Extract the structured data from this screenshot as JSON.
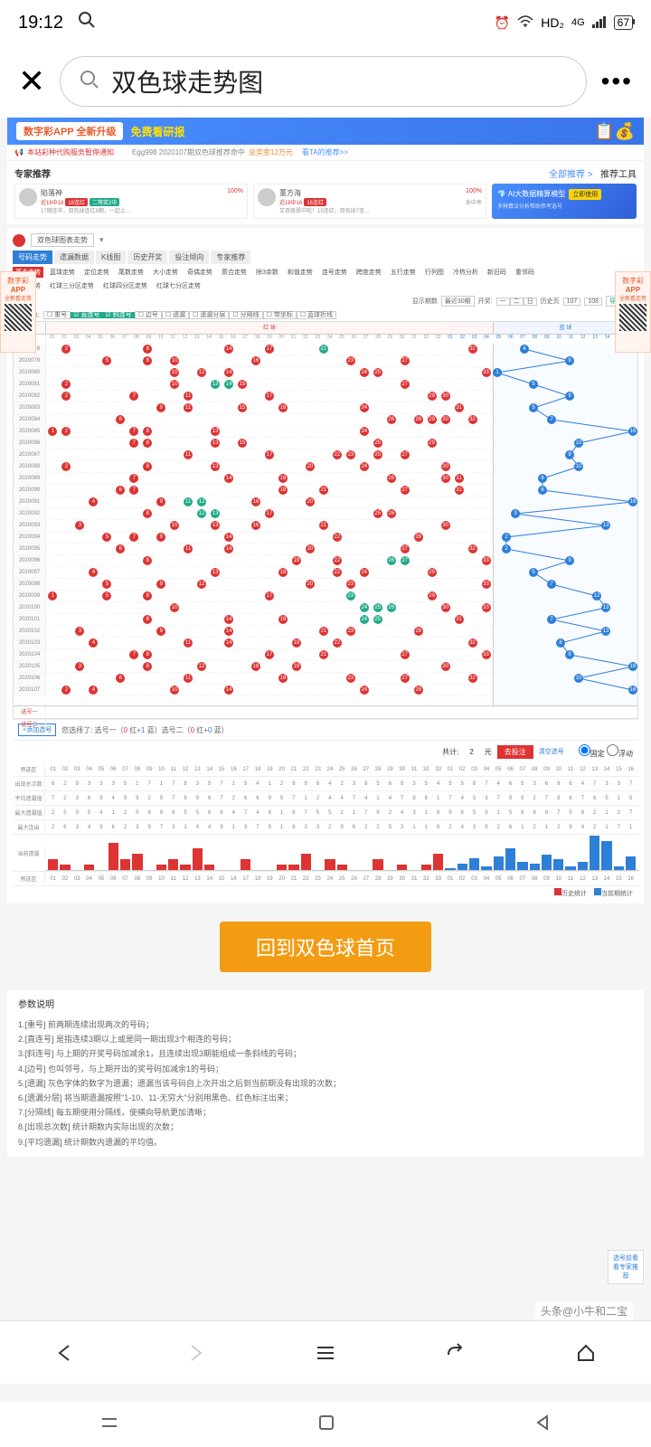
{
  "status": {
    "time": "19:12",
    "net": "HD₂",
    "sig": "4G",
    "battery": "67"
  },
  "search": {
    "query": "双色球走势图"
  },
  "banner": {
    "pill": "数字彩APP 全新升级",
    "text": "免费看研报"
  },
  "notice": {
    "l": "本站彩种代购服务暂停通知",
    "m": "Egg998 2020107期双色球推荐命中",
    "prize": "总奖金12万元",
    "r": "看TA的推荐>>"
  },
  "expert": {
    "title": "专家推荐",
    "all": "全部推荐 >",
    "tool": "推荐工具",
    "cards": [
      {
        "name": "陷落神",
        "pct": "100%",
        "b1": "近18中18",
        "b2": "18连红",
        "b3": "二等奖2中",
        "desc": "17期连中，双色球连红9期，一起上…"
      },
      {
        "name": "董方海",
        "pct": "100%",
        "b1": "近18中16",
        "b2": "16连红",
        "desc2": "命中率",
        "desc": "又双叒叕中啦！15连红，双色球7连…"
      }
    ],
    "ai": {
      "title": "AI大数据精算模型",
      "sub": "多种算法分析帮助参考选号",
      "btn": "立即使用"
    }
  },
  "sideAd": {
    "l1": "数字彩",
    "l2": "APP",
    "l3": "全新看走势"
  },
  "panel": {
    "dd": "双色球图表走势",
    "tabs": [
      "号码走势",
      "遗漏数据",
      "K线图",
      "历史开奖",
      "投注倾向",
      "专家推荐"
    ],
    "subtabs": [
      "基本走势",
      "蓝球走势",
      "定位走势",
      "尾数走势",
      "大小走势",
      "奇偶走势",
      "质合走势",
      "除3余数",
      "和值走势",
      "连号走势",
      "跨度走势",
      "五行走势",
      "行列图",
      "冷热分析",
      "新旧码",
      "重邻码"
    ],
    "subtabs2": [
      "红蓝走势",
      "红球三分区走势",
      "红球四分区走势",
      "红球七分区走势"
    ],
    "filters": {
      "period": "显示期数",
      "dd1": "最近30期",
      "lottery": "开奖:",
      "days": [
        "一",
        "二",
        "日"
      ],
      "hist": "历史页",
      "p1": "107",
      "p2": "108",
      "exp": "导出数据",
      "mark": "标注颜色:",
      "opts": [
        "重号",
        "直连号",
        "斜连号",
        "边号",
        "遗漏",
        "遗漏分层",
        "分隔线",
        "带坐标",
        "蓝球折线"
      ]
    }
  },
  "chart": {
    "redLabel": "红 球",
    "blueLabel": "蓝 球",
    "periods": [
      "2020078",
      "2020079",
      "2020080",
      "2020081",
      "2020082",
      "2020083",
      "2020084",
      "2020085",
      "2020086",
      "2020087",
      "2020088",
      "2020089",
      "2020090",
      "2020091",
      "2020092",
      "2020093",
      "2020094",
      "2020095",
      "2020096",
      "2020097",
      "2020098",
      "2020099",
      "2020100",
      "2020101",
      "2020102",
      "2020103",
      "2020104",
      "2020105",
      "2020106",
      "2020107"
    ],
    "reds": [
      [
        2,
        8,
        14,
        17,
        21,
        32
      ],
      [
        5,
        8,
        10,
        16,
        23,
        27
      ],
      [
        10,
        12,
        14,
        24,
        25,
        33
      ],
      [
        2,
        10,
        13,
        14,
        15,
        27
      ],
      [
        2,
        7,
        11,
        17,
        29,
        30
      ],
      [
        9,
        11,
        15,
        18,
        24,
        31
      ],
      [
        6,
        26,
        28,
        29,
        30,
        32
      ],
      [
        1,
        2,
        7,
        8,
        13,
        24
      ],
      [
        7,
        8,
        13,
        15,
        25,
        29
      ],
      [
        11,
        17,
        22,
        23,
        25,
        27
      ],
      [
        2,
        8,
        13,
        20,
        24,
        30
      ],
      [
        7,
        14,
        18,
        26,
        30,
        31
      ],
      [
        6,
        7,
        18,
        21,
        27,
        31
      ],
      [
        4,
        9,
        11,
        12,
        16,
        20
      ],
      [
        8,
        12,
        13,
        17,
        25,
        26
      ],
      [
        3,
        10,
        13,
        16,
        21,
        30
      ],
      [
        5,
        7,
        9,
        14,
        22,
        28
      ],
      [
        6,
        11,
        14,
        20,
        27,
        32
      ],
      [
        8,
        19,
        22,
        26,
        27,
        33
      ],
      [
        4,
        13,
        18,
        22,
        24,
        29
      ],
      [
        5,
        9,
        12,
        20,
        23,
        33
      ],
      [
        1,
        5,
        8,
        17,
        23,
        29
      ],
      [
        10,
        24,
        25,
        26,
        30,
        33
      ],
      [
        8,
        14,
        18,
        24,
        25,
        31
      ],
      [
        3,
        9,
        14,
        21,
        23,
        28
      ],
      [
        4,
        11,
        14,
        19,
        22,
        32
      ],
      [
        7,
        8,
        17,
        21,
        27,
        33
      ],
      [
        3,
        8,
        12,
        16,
        19,
        30
      ],
      [
        6,
        11,
        18,
        23,
        27,
        32
      ],
      [
        2,
        4,
        10,
        14,
        24,
        28
      ]
    ],
    "greens": [
      [
        21,
        22
      ],
      [
        20,
        21,
        22
      ],
      [],
      [
        13,
        14
      ],
      [],
      [],
      [],
      [],
      [],
      [],
      [],
      [],
      [],
      [
        11,
        12
      ],
      [
        12,
        13
      ],
      [],
      [],
      [],
      [
        26,
        27
      ],
      [],
      [],
      [
        23
      ],
      [
        24,
        25,
        26
      ],
      [
        24,
        25
      ],
      [],
      [],
      [],
      [],
      [],
      []
    ],
    "blues": [
      4,
      9,
      1,
      5,
      9,
      5,
      7,
      16,
      10,
      9,
      10,
      6,
      6,
      16,
      3,
      13,
      2,
      2,
      9,
      5,
      7,
      12,
      13,
      7,
      13,
      8,
      9,
      16,
      10,
      16
    ],
    "selRows": [
      "选号一",
      "选号二"
    ]
  },
  "bet": {
    "add": "+添加选号",
    "info1": "您选择了: 选号一（",
    "r1": "0",
    "m1": " 红+",
    "b1": "1",
    "m2": " 蓝）选号二（",
    "r2": "0",
    "m3": " 红+",
    "b2": "0",
    "m4": " 蓝）",
    "total": "共计:",
    "cnt": "2",
    "yuan": "元",
    "go": "去投注",
    "clear": "清空选号",
    "fix": "固定",
    "float": "浮动"
  },
  "stats": {
    "rows": [
      "预选区",
      "出现总次数",
      "平均遗漏值",
      "最大遗漏值",
      "最大连出",
      "当前遗漏",
      "预选区"
    ],
    "legend1": "历史统计",
    "legend2": "当前期统计",
    "bars": {
      "red": [
        2,
        1,
        0,
        1,
        0,
        5,
        2,
        3,
        0,
        1,
        2,
        1,
        4,
        1,
        0,
        0,
        2,
        0,
        0,
        1,
        1,
        3,
        0,
        2,
        1,
        0,
        0,
        2,
        0,
        1,
        0,
        1,
        3
      ],
      "blue": [
        4,
        14,
        25,
        8,
        29,
        45,
        17,
        13,
        32,
        23,
        8,
        18,
        72,
        60,
        8,
        28
      ]
    }
  },
  "bigBtn": "回到双色球首页",
  "params": {
    "h": "参数说明",
    "items": [
      "1.[重号] 前两期连续出现两次的号码；",
      "2.[直连号] 是指连续3期以上或是同一期出现3个相连的号码；",
      "3.[斜连号] 与上期的开奖号码加减余1，且连续出现3期能组成一条斜线的号码；",
      "4.[边号] 也叫邻号，与上期开出的奖号码加减余1的号码；",
      "5.[遗漏] 灰色字体的数字为遗漏；遗漏当该号码自上次开出之后到当前期没有出现的次数；",
      "6.[遗漏分层] 将当期遗漏按照\"1-10、11-无穷大\"分别用黑色、红色标注出来；",
      "7.[分隔线] 每五期使用分隔线，使横向导航更加清晰；",
      "8.[出现总次数] 统计期数内实际出现的次数；",
      "9.[平均遗漏] 统计期数内遗漏的平均值。"
    ]
  },
  "float": {
    "t1": "选号前看",
    "t2": "看专家推荐"
  },
  "watermark": "头条@小牛和二宝"
}
